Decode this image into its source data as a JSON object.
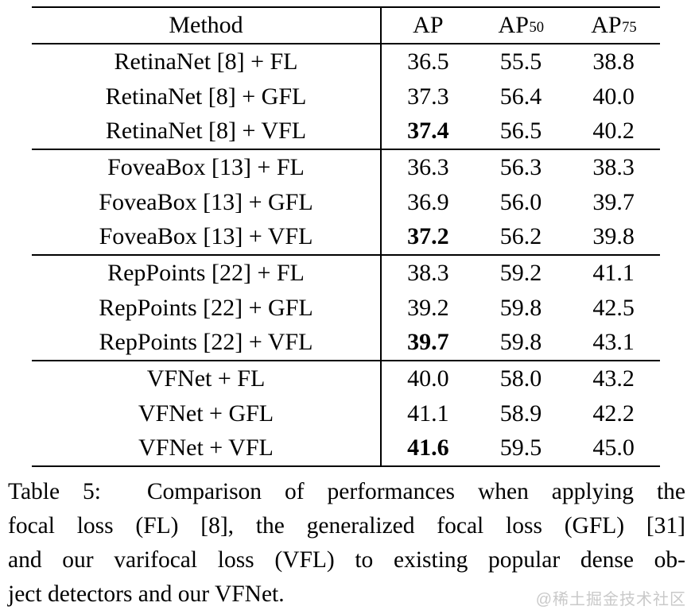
{
  "table": {
    "columns": [
      {
        "label": "Method",
        "sub": ""
      },
      {
        "label": "AP",
        "sub": ""
      },
      {
        "label": "AP",
        "sub": "50"
      },
      {
        "label": "AP",
        "sub": "75"
      }
    ],
    "rows": [
      {
        "method": "RetinaNet [8] + FL",
        "ap": "36.5",
        "ap50": "55.5",
        "ap75": "38.8",
        "ap_bold": false
      },
      {
        "method": "RetinaNet [8] + GFL",
        "ap": "37.3",
        "ap50": "56.4",
        "ap75": "40.0",
        "ap_bold": false
      },
      {
        "method": "RetinaNet [8] + VFL",
        "ap": "37.4",
        "ap50": "56.5",
        "ap75": "40.2",
        "ap_bold": true
      },
      {
        "method": "FoveaBox [13] + FL",
        "ap": "36.3",
        "ap50": "56.3",
        "ap75": "38.3",
        "ap_bold": false
      },
      {
        "method": "FoveaBox [13] + GFL",
        "ap": "36.9",
        "ap50": "56.0",
        "ap75": "39.7",
        "ap_bold": false
      },
      {
        "method": "FoveaBox [13] + VFL",
        "ap": "37.2",
        "ap50": "56.2",
        "ap75": "39.8",
        "ap_bold": true
      },
      {
        "method": "RepPoints [22] + FL",
        "ap": "38.3",
        "ap50": "59.2",
        "ap75": "41.1",
        "ap_bold": false
      },
      {
        "method": "RepPoints [22] + GFL",
        "ap": "39.2",
        "ap50": "59.8",
        "ap75": "42.5",
        "ap_bold": false
      },
      {
        "method": "RepPoints [22] + VFL",
        "ap": "39.7",
        "ap50": "59.8",
        "ap75": "43.1",
        "ap_bold": true
      },
      {
        "method": "VFNet + FL",
        "ap": "40.0",
        "ap50": "58.0",
        "ap75": "43.2",
        "ap_bold": false
      },
      {
        "method": "VFNet + GFL",
        "ap": "41.1",
        "ap50": "58.9",
        "ap75": "42.2",
        "ap_bold": false
      },
      {
        "method": "VFNet + VFL",
        "ap": "41.6",
        "ap50": "59.5",
        "ap75": "45.0",
        "ap_bold": true
      }
    ]
  },
  "caption": {
    "lines": [
      "Table 5:  Comparison of performances when applying the",
      "focal loss (FL) [8], the generalized focal loss (GFL) [31]",
      "and our varifocal loss (VFL) to existing popular dense ob-",
      "ject detectors and our VFNet."
    ]
  },
  "watermark": {
    "text": "@稀土掘金技术社区",
    "color": "#c9c9c9"
  }
}
